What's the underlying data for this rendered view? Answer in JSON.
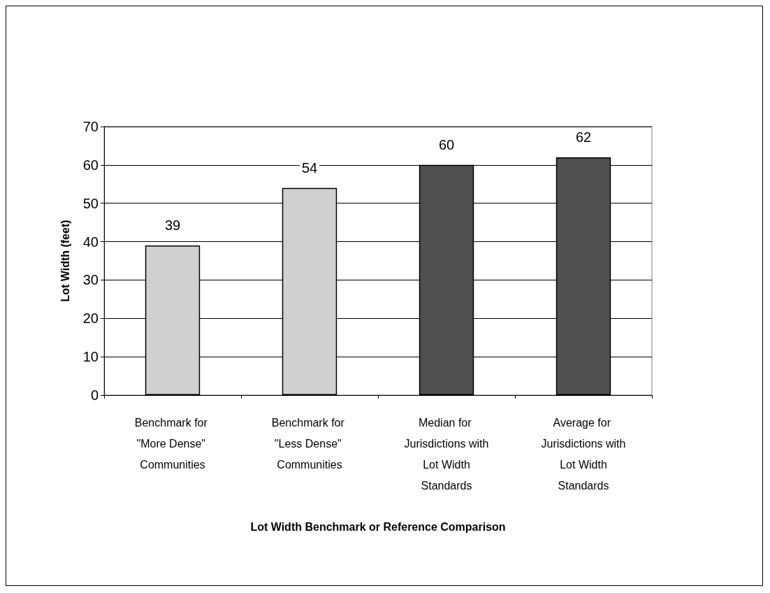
{
  "chart_data": {
    "type": "bar",
    "xlabel": "Lot Width Benchmark or Reference Comparison",
    "ylabel": "Lot Width (feet)",
    "categories": [
      "Benchmark for \"More Dense\" Communities",
      "Benchmark for \"Less Dense\" Communities",
      "Median for Jurisdictions with Lot Width Standards",
      "Average for Jurisdictions with Lot Width Standards"
    ],
    "values": [
      39,
      54,
      60,
      62
    ],
    "colors": [
      "#d0d0d0",
      "#d0d0d0",
      "#505050",
      "#505050"
    ],
    "ylim": [
      0,
      70
    ],
    "yticks": [
      0,
      10,
      20,
      30,
      40,
      50,
      60,
      70
    ],
    "grid": "y",
    "data_labels": true
  }
}
